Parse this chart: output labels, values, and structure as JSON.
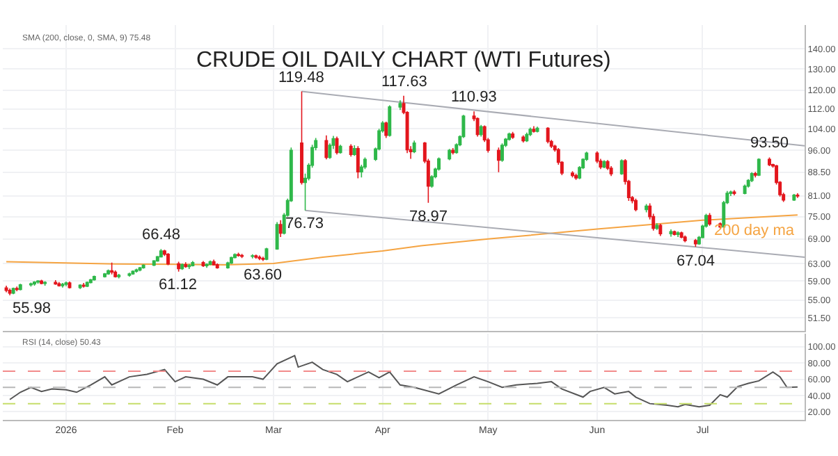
{
  "chart_data": [
    {
      "type": "candlestick",
      "title": "CRUDE OIL DAILY CHART (WTI Futures)",
      "log": true,
      "grid": true,
      "tick_labels": "y",
      "xlim": [
        "2025-12-14",
        "2026-07-30"
      ],
      "xticks": [
        {
          "value": "2026-01-01",
          "label": null
        },
        {
          "value": "2026-02-01",
          "label": null
        },
        {
          "value": "2026-03-01",
          "label": null
        },
        {
          "value": "2026-04-01",
          "label": null
        },
        {
          "value": "2026-05-01",
          "label": null
        },
        {
          "value": "2026-06-01",
          "label": null
        },
        {
          "value": "2026-07-01",
          "label": null
        }
      ],
      "ylim": [
        49,
        153
      ],
      "yticks": [
        {
          "value": 140,
          "label": "140.00"
        },
        {
          "value": 130,
          "label": "130.00"
        },
        {
          "value": 120,
          "label": "120.00"
        },
        {
          "value": 112,
          "label": "112.00"
        },
        {
          "value": 104,
          "label": "104.00"
        },
        {
          "value": 96,
          "label": "96.00"
        },
        {
          "value": 88.5,
          "label": "88.50"
        },
        {
          "value": 81,
          "label": "81.00"
        },
        {
          "value": 75,
          "label": "75.00"
        },
        {
          "value": 69,
          "label": "69.00"
        },
        {
          "value": 63,
          "label": "63.00"
        },
        {
          "value": 59,
          "label": "59.00"
        },
        {
          "value": 55,
          "label": "55.00"
        },
        {
          "value": 51.5,
          "label": "51.50"
        }
      ],
      "x": [
        "2025-12-15",
        "2025-12-16",
        "2025-12-17",
        "2025-12-18",
        "2025-12-19",
        "2025-12-22",
        "2025-12-23",
        "2025-12-24",
        "2025-12-25",
        "2025-12-26",
        "2025-12-29",
        "2025-12-30",
        "2025-12-31",
        "2026-01-01",
        "2026-01-02",
        "2026-01-05",
        "2026-01-06",
        "2026-01-07",
        "2026-01-08",
        "2026-01-09",
        "2026-01-12",
        "2026-01-13",
        "2026-01-14",
        "2026-01-15",
        "2026-01-16",
        "2026-01-19",
        "2026-01-20",
        "2026-01-21",
        "2026-01-22",
        "2026-01-23",
        "2026-01-26",
        "2026-01-27",
        "2026-01-28",
        "2026-01-29",
        "2026-01-30",
        "2026-02-02",
        "2026-02-03",
        "2026-02-04",
        "2026-02-05",
        "2026-02-06",
        "2026-02-09",
        "2026-02-10",
        "2026-02-11",
        "2026-02-12",
        "2026-02-13",
        "2026-02-16",
        "2026-02-17",
        "2026-02-18",
        "2026-02-19",
        "2026-02-20",
        "2026-02-23",
        "2026-02-24",
        "2026-02-25",
        "2026-02-26",
        "2026-02-27",
        "2026-03-02",
        "2026-03-03",
        "2026-03-04",
        "2026-03-05",
        "2026-03-06",
        "2026-03-09",
        "2026-03-10",
        "2026-03-11",
        "2026-03-12",
        "2026-03-13",
        "2026-03-16",
        "2026-03-17",
        "2026-03-18",
        "2026-03-19",
        "2026-03-20",
        "2026-03-23",
        "2026-03-24",
        "2026-03-25",
        "2026-03-26",
        "2026-03-27",
        "2026-03-30",
        "2026-03-31",
        "2026-04-01",
        "2026-04-02",
        "2026-04-03",
        "2026-04-06",
        "2026-04-07",
        "2026-04-08",
        "2026-04-09",
        "2026-04-10",
        "2026-04-13",
        "2026-04-14",
        "2026-04-15",
        "2026-04-16",
        "2026-04-17",
        "2026-04-20",
        "2026-04-21",
        "2026-04-22",
        "2026-04-23",
        "2026-04-24",
        "2026-04-27",
        "2026-04-28",
        "2026-04-29",
        "2026-04-30",
        "2026-05-01",
        "2026-05-04",
        "2026-05-05",
        "2026-05-06",
        "2026-05-07",
        "2026-05-08",
        "2026-05-11",
        "2026-05-12",
        "2026-05-13",
        "2026-05-14",
        "2026-05-15",
        "2026-05-18",
        "2026-05-19",
        "2026-05-20",
        "2026-05-21",
        "2026-05-22",
        "2026-05-25",
        "2026-05-26",
        "2026-05-27",
        "2026-05-28",
        "2026-05-29",
        "2026-06-01",
        "2026-06-02",
        "2026-06-03",
        "2026-06-04",
        "2026-06-05",
        "2026-06-08",
        "2026-06-09",
        "2026-06-10",
        "2026-06-11",
        "2026-06-12",
        "2026-06-15",
        "2026-06-16",
        "2026-06-17",
        "2026-06-18",
        "2026-06-19",
        "2026-06-22",
        "2026-06-23",
        "2026-06-24",
        "2026-06-25",
        "2026-06-26",
        "2026-06-29",
        "2026-06-30",
        "2026-07-01",
        "2026-07-02",
        "2026-07-03",
        "2026-07-06",
        "2026-07-07",
        "2026-07-08",
        "2026-07-09",
        "2026-07-10",
        "2026-07-13",
        "2026-07-14",
        "2026-07-15",
        "2026-07-16",
        "2026-07-17",
        "2026-07-20",
        "2026-07-21",
        "2026-07-22",
        "2026-07-23",
        "2026-07-24",
        "2026-07-27",
        "2026-07-28"
      ],
      "ohlc": [
        [
          57.5,
          58.0,
          56.6,
          57.0
        ],
        [
          57.0,
          57.4,
          55.98,
          56.4
        ],
        [
          56.4,
          57.6,
          56.2,
          57.4
        ],
        [
          57.4,
          57.8,
          56.8,
          57.2
        ],
        [
          57.2,
          58.4,
          57.0,
          58.2
        ],
        [
          58.2,
          58.7,
          57.8,
          58.4
        ],
        [
          58.4,
          59.0,
          58.0,
          58.8
        ],
        [
          58.8,
          59.2,
          58.4,
          59.0
        ],
        [
          59.0,
          59.3,
          58.3,
          58.5
        ],
        [
          58.5,
          59.0,
          58.0,
          58.7
        ],
        [
          58.7,
          59.2,
          58.2,
          58.4
        ],
        [
          58.4,
          58.8,
          57.8,
          58.0
        ],
        [
          58.0,
          58.6,
          57.6,
          58.3
        ],
        [
          58.3,
          58.9,
          57.9,
          58.6
        ],
        [
          58.6,
          58.9,
          57.4,
          57.6
        ],
        [
          57.6,
          58.3,
          57.3,
          58.1
        ],
        [
          58.1,
          58.6,
          57.6,
          57.9
        ],
        [
          57.9,
          58.9,
          57.7,
          58.7
        ],
        [
          58.7,
          59.5,
          58.5,
          59.3
        ],
        [
          59.3,
          60.2,
          59.1,
          60.0
        ],
        [
          60.0,
          60.8,
          59.8,
          60.6
        ],
        [
          60.6,
          61.6,
          60.4,
          61.3
        ],
        [
          61.3,
          63.2,
          60.5,
          61.0
        ],
        [
          61.0,
          61.4,
          59.8,
          60.0
        ],
        [
          60.0,
          60.6,
          59.6,
          60.3
        ],
        [
          60.3,
          60.9,
          60.0,
          60.6
        ],
        [
          60.6,
          61.4,
          60.4,
          61.2
        ],
        [
          61.2,
          61.8,
          60.9,
          61.5
        ],
        [
          61.5,
          62.2,
          61.2,
          62.0
        ],
        [
          62.0,
          62.8,
          61.8,
          62.6
        ],
        [
          62.6,
          63.8,
          62.4,
          63.6
        ],
        [
          63.6,
          64.8,
          63.4,
          64.6
        ],
        [
          64.6,
          66.48,
          64.4,
          66.0
        ],
        [
          66.0,
          66.3,
          64.8,
          65.2
        ],
        [
          65.2,
          65.5,
          62.6,
          62.9
        ],
        [
          62.9,
          63.4,
          61.12,
          61.8
        ],
        [
          61.8,
          63.0,
          61.5,
          62.7
        ],
        [
          62.7,
          63.3,
          62.0,
          62.3
        ],
        [
          62.3,
          62.9,
          61.7,
          62.5
        ],
        [
          62.5,
          63.6,
          62.3,
          63.2
        ],
        [
          63.2,
          63.6,
          62.2,
          62.5
        ],
        [
          62.5,
          63.0,
          62.0,
          62.8
        ],
        [
          62.8,
          63.7,
          62.6,
          63.4
        ],
        [
          63.4,
          63.9,
          62.5,
          62.7
        ],
        [
          62.7,
          63.0,
          61.8,
          62.0
        ],
        [
          62.0,
          63.4,
          61.8,
          63.1
        ],
        [
          63.1,
          64.6,
          62.9,
          64.4
        ],
        [
          64.4,
          65.4,
          64.2,
          65.1
        ],
        [
          65.1,
          65.6,
          64.6,
          64.9
        ],
        [
          64.9,
          65.3,
          64.3,
          64.7
        ],
        [
          64.7,
          65.2,
          64.2,
          64.8
        ],
        [
          64.8,
          65.1,
          64.1,
          64.5
        ],
        [
          64.5,
          64.9,
          63.8,
          64.2
        ],
        [
          64.2,
          64.6,
          63.6,
          64.0
        ],
        [
          64.0,
          66.8,
          63.8,
          66.5
        ],
        [
          66.5,
          73.5,
          66.3,
          72.8
        ],
        [
          72.8,
          74.0,
          69.5,
          70.5
        ],
        [
          70.5,
          76.0,
          70.2,
          75.4
        ],
        [
          75.4,
          80.2,
          75.0,
          79.6
        ],
        [
          79.6,
          97.0,
          79.2,
          96.0
        ],
        [
          98.6,
          119.48,
          84.5,
          85.2
        ],
        [
          85.2,
          88.0,
          76.73,
          86.5
        ],
        [
          86.5,
          91.5,
          85.8,
          90.8
        ],
        [
          90.8,
          98.0,
          90.0,
          97.0
        ],
        [
          97.0,
          100.5,
          96.0,
          99.5
        ],
        [
          99.5,
          101.5,
          92.8,
          93.5
        ],
        [
          93.5,
          98.5,
          93.0,
          97.8
        ],
        [
          97.8,
          101.3,
          96.5,
          100.2
        ],
        [
          100.2,
          101.0,
          94.5,
          95.2
        ],
        [
          95.2,
          98.0,
          94.8,
          97.4
        ],
        [
          97.4,
          98.2,
          93.8,
          94.5
        ],
        [
          94.5,
          97.8,
          94.0,
          96.6
        ],
        [
          96.6,
          97.5,
          86.5,
          88.6
        ],
        [
          88.6,
          91.0,
          86.8,
          90.2
        ],
        [
          90.2,
          93.5,
          89.5,
          92.8
        ],
        [
          92.8,
          97.0,
          92.3,
          96.5
        ],
        [
          96.5,
          104.0,
          96.0,
          103.2
        ],
        [
          103.2,
          107.0,
          102.5,
          106.2
        ],
        [
          106.2,
          106.8,
          100.5,
          101.5
        ],
        [
          101.5,
          113.5,
          101.0,
          112.8
        ],
        [
          112.8,
          115.6,
          111.5,
          114.2
        ],
        [
          114.2,
          117.63,
          109.8,
          110.5
        ],
        [
          110.5,
          111.0,
          95.0,
          96.2
        ],
        [
          96.2,
          97.5,
          93.0,
          95.5
        ],
        [
          95.5,
          99.5,
          95.0,
          98.6
        ],
        [
          98.6,
          99.0,
          91.5,
          92.2
        ],
        [
          92.2,
          93.0,
          78.97,
          84.0
        ],
        [
          84.0,
          87.5,
          83.5,
          87.0
        ],
        [
          87.0,
          90.0,
          86.5,
          89.5
        ],
        [
          89.5,
          93.5,
          89.0,
          93.0
        ],
        [
          93.0,
          96.5,
          92.5,
          96.0
        ],
        [
          96.0,
          96.8,
          94.5,
          95.2
        ],
        [
          95.2,
          98.5,
          94.8,
          98.0
        ],
        [
          98.0,
          101.5,
          97.5,
          101.0
        ],
        [
          101.0,
          109.5,
          100.5,
          109.0
        ],
        [
          109.0,
          110.93,
          107.0,
          108.0
        ],
        [
          108.0,
          108.5,
          101.0,
          101.8
        ],
        [
          101.8,
          105.5,
          101.0,
          104.8
        ],
        [
          104.8,
          105.3,
          99.0,
          99.8
        ],
        [
          99.8,
          100.5,
          95.2,
          96.0
        ],
        [
          96.0,
          97.0,
          88.5,
          92.5
        ],
        [
          92.5,
          98.5,
          92.0,
          97.8
        ],
        [
          97.8,
          100.5,
          97.2,
          100.0
        ],
        [
          100.0,
          102.5,
          99.5,
          102.0
        ],
        [
          102.0,
          102.8,
          100.2,
          100.8
        ],
        [
          100.8,
          101.5,
          98.8,
          99.5
        ],
        [
          99.5,
          102.5,
          99.0,
          101.8
        ],
        [
          101.8,
          104.5,
          101.2,
          103.8
        ],
        [
          103.8,
          105.0,
          102.5,
          103.0
        ],
        [
          103.0,
          104.8,
          102.6,
          104.2
        ],
        [
          104.2,
          104.6,
          98.5,
          99.2
        ],
        [
          99.2,
          99.8,
          96.8,
          97.5
        ],
        [
          97.5,
          98.0,
          95.5,
          96.2
        ],
        [
          96.2,
          96.8,
          91.0,
          91.8
        ],
        [
          91.8,
          92.2,
          87.5,
          88.2
        ],
        [
          88.2,
          88.8,
          86.8,
          87.4
        ],
        [
          87.4,
          88.0,
          86.0,
          86.6
        ],
        [
          86.6,
          90.5,
          86.2,
          90.0
        ],
        [
          90.0,
          93.2,
          89.5,
          92.8
        ],
        [
          92.8,
          95.5,
          92.3,
          95.0
        ],
        [
          95.0,
          95.6,
          91.5,
          92.2
        ],
        [
          92.2,
          93.0,
          89.5,
          90.2
        ],
        [
          90.2,
          92.5,
          89.8,
          92.0
        ],
        [
          92.0,
          92.6,
          89.2,
          89.8
        ],
        [
          89.8,
          90.5,
          87.2,
          88.0
        ],
        [
          88.0,
          92.8,
          87.6,
          92.3
        ],
        [
          92.3,
          92.9,
          84.5,
          85.5
        ],
        [
          85.5,
          86.0,
          79.5,
          80.5
        ],
        [
          80.5,
          81.0,
          78.8,
          79.6
        ],
        [
          79.6,
          80.2,
          76.5,
          77.0
        ],
        [
          77.0,
          78.6,
          76.2,
          78.0
        ],
        [
          78.0,
          78.8,
          74.2,
          75.0
        ],
        [
          75.0,
          75.8,
          71.2,
          71.8
        ],
        [
          71.8,
          73.2,
          71.4,
          72.6
        ],
        [
          72.6,
          73.0,
          69.8,
          70.4
        ],
        [
          70.4,
          71.5,
          69.6,
          70.9
        ],
        [
          70.9,
          71.2,
          69.9,
          70.2
        ],
        [
          70.2,
          71.0,
          69.5,
          70.6
        ],
        [
          70.6,
          70.9,
          69.2,
          69.5
        ],
        [
          69.5,
          69.9,
          68.2,
          68.6
        ],
        [
          68.6,
          69.0,
          67.04,
          67.8
        ],
        [
          67.8,
          69.8,
          67.5,
          69.4
        ],
        [
          69.4,
          72.8,
          69.2,
          72.4
        ],
        [
          72.4,
          75.8,
          72.0,
          75.3
        ],
        [
          75.3,
          76.0,
          72.5,
          73.0
        ],
        [
          73.0,
          73.4,
          71.8,
          72.2
        ],
        [
          72.2,
          79.5,
          72.0,
          79.0
        ],
        [
          79.0,
          82.5,
          78.6,
          81.8
        ],
        [
          81.8,
          82.6,
          81.0,
          82.2
        ],
        [
          82.2,
          82.8,
          81.2,
          81.8
        ],
        [
          81.8,
          84.5,
          81.5,
          84.0
        ],
        [
          84.0,
          86.2,
          83.6,
          85.8
        ],
        [
          85.8,
          88.5,
          85.3,
          88.0
        ],
        [
          88.0,
          88.6,
          86.8,
          87.5
        ],
        [
          87.5,
          93.2,
          87.2,
          92.8
        ],
        [
          92.8,
          93.5,
          90.5,
          91.0
        ],
        [
          91.0,
          91.3,
          90.0,
          90.6
        ],
        [
          90.6,
          90.9,
          84.5,
          85.2
        ],
        [
          85.2,
          85.6,
          80.8,
          81.4
        ],
        [
          81.4,
          82.0,
          79.2,
          79.8
        ],
        [
          79.8,
          81.6,
          79.5,
          81.2
        ],
        [
          81.2,
          81.8,
          80.4,
          81.0
        ]
      ],
      "series": [
        {
          "type": "line",
          "name": "200 day ma",
          "color": "#f5a442",
          "x": [
            "2025-12-15",
            "2026-01-15",
            "2026-02-15",
            "2026-03-01",
            "2026-03-15",
            "2026-04-01",
            "2026-04-12",
            "2026-05-01",
            "2026-06-01",
            "2026-07-01",
            "2026-07-28"
          ],
          "values": [
            63.4,
            62.9,
            62.7,
            63.0,
            64.5,
            66.0,
            67.3,
            69.0,
            71.6,
            74.0,
            75.48
          ]
        },
        {
          "type": "line",
          "color": "#a9abb3",
          "x": [
            "2026-03-09",
            "2026-07-30"
          ],
          "values": [
            119.48,
            97.6
          ]
        },
        {
          "type": "line",
          "color": "#a9abb3",
          "x": [
            "2026-03-10",
            "2026-07-30"
          ],
          "values": [
            76.73,
            64.5
          ]
        }
      ],
      "annotations": [
        "SMA (200, close, 0, SMA, 9) 75.48",
        {
          "text": "55.98",
          "x": "2025-12-16",
          "y": 55.98
        },
        {
          "text": "66.48",
          "x": "2026-01-28",
          "y": 66.48
        },
        {
          "text": "61.12",
          "x": "2026-02-02",
          "y": 61.12
        },
        {
          "text": "63.60",
          "x": "2026-02-26",
          "y": 63.6
        },
        {
          "text": "119.48",
          "x": "2026-03-09",
          "y": 119.48
        },
        {
          "text": "76.73",
          "x": "2026-03-10",
          "y": 76.73
        },
        {
          "text": "117.63",
          "x": "2026-04-07",
          "y": 117.63
        },
        {
          "text": "78.97",
          "x": "2026-04-14",
          "y": 78.97
        },
        {
          "text": "110.93",
          "x": "2026-04-27",
          "y": 110.93
        },
        {
          "text": "67.04",
          "x": "2026-06-29",
          "y": 67.04
        },
        {
          "text": "93.50",
          "x": "2026-07-20",
          "y": 93.5
        }
      ]
    },
    {
      "type": "line",
      "grid": true,
      "xlim": [
        "2025-12-14",
        "2026-07-30"
      ],
      "xticks": [
        {
          "value": "2026-01-01",
          "label": "2026"
        },
        {
          "value": "2026-02-01",
          "label": "Feb"
        },
        {
          "value": "2026-03-01",
          "label": "Mar"
        },
        {
          "value": "2026-04-01",
          "label": "Apr"
        },
        {
          "value": "2026-05-01",
          "label": "May"
        },
        {
          "value": "2026-06-01",
          "label": "Jun"
        },
        {
          "value": "2026-07-01",
          "label": "Jul"
        }
      ],
      "ylim": [
        10,
        116
      ],
      "yticks": [
        {
          "value": 100,
          "label": "100.00"
        },
        {
          "value": 80,
          "label": "80.00"
        },
        {
          "value": 60,
          "label": "60.00"
        },
        {
          "value": 40,
          "label": "40.00"
        },
        {
          "value": 20,
          "label": "20.00"
        }
      ],
      "ref_lines": [
        {
          "axis": "y",
          "value": 70,
          "color": "#f28b8b",
          "line_style": "dashed"
        },
        {
          "axis": "y",
          "value": 50,
          "color": "#b8b8b8",
          "line_style": "dashed"
        },
        {
          "axis": "y",
          "value": 30,
          "color": "#c5dd6a",
          "line_style": "dashed"
        }
      ],
      "series": [
        {
          "color": "#555555",
          "x": [
            "2025-12-16",
            "2025-12-19",
            "2025-12-22",
            "2025-12-25",
            "2025-12-28",
            "2026-01-01",
            "2026-01-04",
            "2026-01-08",
            "2026-01-12",
            "2026-01-14",
            "2026-01-19",
            "2026-01-24",
            "2026-01-29",
            "2026-02-01",
            "2026-02-04",
            "2026-02-09",
            "2026-02-13",
            "2026-02-16",
            "2026-02-23",
            "2026-02-26",
            "2026-03-02",
            "2026-03-07",
            "2026-03-08",
            "2026-03-12",
            "2026-03-15",
            "2026-03-19",
            "2026-03-22",
            "2026-03-28",
            "2026-03-31",
            "2026-04-03",
            "2026-04-06",
            "2026-04-10",
            "2026-04-17",
            "2026-04-22",
            "2026-04-27",
            "2026-05-01",
            "2026-05-05",
            "2026-05-09",
            "2026-05-15",
            "2026-05-19",
            "2026-05-22",
            "2026-05-28",
            "2026-05-30",
            "2026-06-03",
            "2026-06-06",
            "2026-06-10",
            "2026-06-12",
            "2026-06-16",
            "2026-06-21",
            "2026-06-24",
            "2026-06-26",
            "2026-06-30",
            "2026-07-03",
            "2026-07-06",
            "2026-07-08",
            "2026-07-11",
            "2026-07-14",
            "2026-07-17",
            "2026-07-21",
            "2026-07-23",
            "2026-07-25",
            "2026-07-28"
          ],
          "values": [
            35,
            44,
            50,
            45,
            48,
            47,
            44,
            53,
            63,
            53,
            63,
            66,
            72,
            57,
            63,
            60,
            53,
            63,
            63,
            60,
            79,
            89,
            75,
            81,
            72,
            66,
            57,
            69,
            62,
            69,
            53,
            50,
            42,
            53,
            63,
            57,
            50,
            53,
            55,
            57,
            48,
            38,
            45,
            50,
            42,
            45,
            38,
            30,
            28,
            26,
            29,
            26,
            28,
            41,
            38,
            51,
            55,
            58,
            69,
            63,
            50,
            50.43
          ]
        }
      ],
      "annotations": [
        "RSI (14, close) 50.43"
      ]
    }
  ]
}
